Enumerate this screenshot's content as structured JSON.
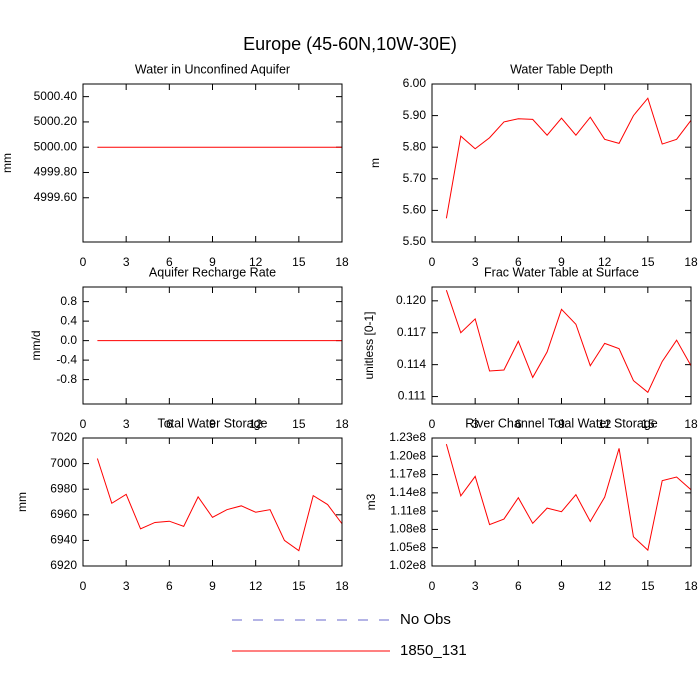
{
  "title": "Europe (45-60N,10W-30E)",
  "legend": [
    {
      "name": "No Obs",
      "color": "#6a6acd",
      "dash": true
    },
    {
      "name": "1850_131",
      "color": "#ff0000",
      "dash": false
    }
  ],
  "chart_data": [
    {
      "type": "line",
      "title": "Water in Unconfined Aquifer",
      "ylabel": "mm",
      "x": [
        1,
        2,
        3,
        4,
        5,
        6,
        7,
        8,
        9,
        10,
        11,
        12,
        13,
        14,
        15,
        16,
        17,
        18
      ],
      "series": [
        {
          "color": "#ff0000",
          "values": [
            5000,
            5000,
            5000,
            5000,
            5000,
            5000,
            5000,
            5000,
            5000,
            5000,
            5000,
            5000,
            5000,
            5000,
            5000,
            5000,
            5000,
            5000
          ]
        }
      ],
      "xlim": [
        0,
        18
      ],
      "xticks": [
        0,
        3,
        6,
        9,
        12,
        15,
        18
      ],
      "ylim": [
        4999.25,
        5000.5
      ],
      "yticks": [
        {
          "value": 4999.6,
          "label": "4999.60"
        },
        {
          "value": 4999.8,
          "label": "4999.80"
        },
        {
          "value": 5000,
          "label": "5000.00"
        },
        {
          "value": 5000.2,
          "label": "5000.20"
        },
        {
          "value": 5000.4,
          "label": "5000.40"
        }
      ]
    },
    {
      "type": "line",
      "title": "Water Table Depth",
      "ylabel": "m",
      "x": [
        1,
        2,
        3,
        4,
        5,
        6,
        7,
        8,
        9,
        10,
        11,
        12,
        13,
        14,
        15,
        16,
        17,
        18
      ],
      "series": [
        {
          "color": "#ff0000",
          "values": [
            5.575,
            5.835,
            5.795,
            5.83,
            5.88,
            5.89,
            5.888,
            5.838,
            5.892,
            5.838,
            5.895,
            5.825,
            5.812,
            5.9,
            5.955,
            5.81,
            5.825,
            5.885
          ]
        }
      ],
      "xlim": [
        0,
        18
      ],
      "xticks": [
        0,
        3,
        6,
        9,
        12,
        15,
        18
      ],
      "ylim": [
        5.5,
        6.0
      ],
      "yticks": [
        {
          "value": 5.5,
          "label": "5.50"
        },
        {
          "value": 5.6,
          "label": "5.60"
        },
        {
          "value": 5.7,
          "label": "5.70"
        },
        {
          "value": 5.8,
          "label": "5.80"
        },
        {
          "value": 5.9,
          "label": "5.90"
        },
        {
          "value": 6.0,
          "label": "6.00"
        }
      ]
    },
    {
      "type": "line",
      "title": "Aquifer Recharge Rate",
      "ylabel": "mm/d",
      "x": [
        1,
        2,
        3,
        4,
        5,
        6,
        7,
        8,
        9,
        10,
        11,
        12,
        13,
        14,
        15,
        16,
        17,
        18
      ],
      "series": [
        {
          "color": "#ff0000",
          "values": [
            0,
            0,
            0,
            0,
            0,
            0,
            0,
            0,
            0,
            0,
            0,
            0,
            0,
            0,
            0,
            0,
            0,
            0
          ]
        }
      ],
      "xlim": [
        0,
        18
      ],
      "xticks": [
        0,
        3,
        6,
        9,
        12,
        15,
        18
      ],
      "ylim": [
        -1.3,
        1.1
      ],
      "yticks": [
        -0.8,
        -0.4,
        {
          "value": 0,
          "label": "0.0"
        },
        0.4,
        0.8
      ]
    },
    {
      "type": "line",
      "title": "Frac Water Table at Surface",
      "ylabel": "unitless [0-1]",
      "x": [
        1,
        2,
        3,
        4,
        5,
        6,
        7,
        8,
        9,
        10,
        11,
        12,
        13,
        14,
        15,
        16,
        17,
        18
      ],
      "series": [
        {
          "color": "#ff0000",
          "values": [
            0.121,
            0.117,
            0.1183,
            0.1134,
            0.1135,
            0.1162,
            0.1128,
            0.1152,
            0.1192,
            0.1178,
            0.1139,
            0.116,
            0.1155,
            0.1125,
            0.1114,
            0.1143,
            0.1163,
            0.1139
          ]
        }
      ],
      "xlim": [
        0,
        18
      ],
      "xticks": [
        0,
        3,
        6,
        9,
        12,
        15,
        18
      ],
      "ylim": [
        0.1103,
        0.1213
      ],
      "yticks": [
        0.111,
        0.114,
        0.117,
        {
          "value": 0.12,
          "label": "0.120"
        }
      ]
    },
    {
      "type": "line",
      "title": "Total Water Storage",
      "ylabel": "mm",
      "x": [
        1,
        2,
        3,
        4,
        5,
        6,
        7,
        8,
        9,
        10,
        11,
        12,
        13,
        14,
        15,
        16,
        17,
        18
      ],
      "series": [
        {
          "color": "#ff0000",
          "values": [
            7004,
            6969,
            6976,
            6949,
            6954,
            6955,
            6951,
            6974,
            6958,
            6964,
            6967,
            6962,
            6964,
            6940,
            6932,
            6975,
            6968,
            6953
          ]
        }
      ],
      "xlim": [
        0,
        18
      ],
      "xticks": [
        0,
        3,
        6,
        9,
        12,
        15,
        18
      ],
      "ylim": [
        6920,
        7020
      ],
      "yticks": [
        6920,
        6940,
        6960,
        6980,
        7000,
        7020
      ]
    },
    {
      "type": "line",
      "title": "River Channel Total Water Storage",
      "ylabel": "m3",
      "x": [
        1,
        2,
        3,
        4,
        5,
        6,
        7,
        8,
        9,
        10,
        11,
        12,
        13,
        14,
        15,
        16,
        17,
        18
      ],
      "series": [
        {
          "color": "#ff0000",
          "values": [
            122000000,
            113500000,
            116700000,
            108800000,
            109700000,
            113200000,
            109000000,
            111500000,
            110900000,
            113700000,
            109300000,
            113300000,
            121300000,
            106800000,
            104600000,
            116000000,
            116600000,
            114500000
          ]
        }
      ],
      "xlim": [
        0,
        18
      ],
      "xticks": [
        0,
        3,
        6,
        9,
        12,
        15,
        18
      ],
      "ylim": [
        102000000,
        123000000
      ],
      "yticks": [
        {
          "value": 102000000,
          "label": "1.02e8"
        },
        {
          "value": 105000000,
          "label": "1.05e8"
        },
        {
          "value": 108000000,
          "label": "1.08e8"
        },
        {
          "value": 111000000,
          "label": "1.11e8"
        },
        {
          "value": 114000000,
          "label": "1.14e8"
        },
        {
          "value": 117000000,
          "label": "1.17e8"
        },
        {
          "value": 120000000,
          "label": "1.20e8"
        },
        {
          "value": 123000000,
          "label": "1.23e8"
        }
      ]
    }
  ]
}
